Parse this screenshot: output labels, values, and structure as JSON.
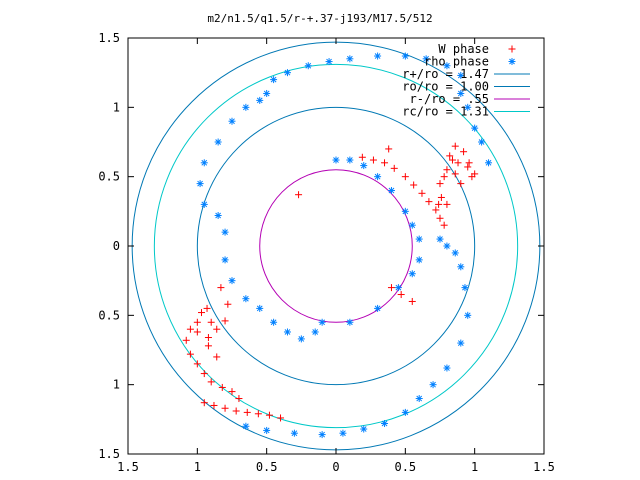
{
  "chart_data": {
    "type": "scatter",
    "title": "m2/n1.5/q1.5/r-+.37-j193/M17.5/512",
    "xlabel": "",
    "ylabel": "",
    "xlim": [
      -1.5,
      1.5
    ],
    "ylim": [
      -1.5,
      1.5
    ],
    "x_ticks": [
      -1.5,
      -1,
      -0.5,
      0,
      0.5,
      1,
      1.5
    ],
    "y_ticks": [
      1.5,
      1,
      0.5,
      0,
      -0.5,
      -1,
      -1.5
    ],
    "x_tick_labels": [
      "1.5",
      "1",
      "0.5",
      "0",
      "0.5",
      "1",
      "1.5"
    ],
    "y_tick_labels": [
      "1.5",
      "1",
      "0.5",
      "0",
      "0.5",
      "1",
      "1.5"
    ],
    "grid": false,
    "legend_position": "top-right",
    "series": [
      {
        "name": "W phase",
        "marker": "plus",
        "color": "#ff0000",
        "points": [
          [
            0.19,
            0.64
          ],
          [
            0.27,
            0.62
          ],
          [
            0.35,
            0.6
          ],
          [
            0.42,
            0.56
          ],
          [
            0.5,
            0.5
          ],
          [
            0.56,
            0.44
          ],
          [
            0.62,
            0.38
          ],
          [
            0.67,
            0.32
          ],
          [
            0.72,
            0.26
          ],
          [
            0.75,
            0.2
          ],
          [
            0.78,
            0.15
          ],
          [
            0.74,
            0.3
          ],
          [
            0.78,
            0.5
          ],
          [
            0.82,
            0.65
          ],
          [
            0.86,
            0.72
          ],
          [
            0.92,
            0.68
          ],
          [
            0.96,
            0.6
          ],
          [
            0.98,
            0.5
          ],
          [
            0.9,
            0.45
          ],
          [
            0.86,
            0.52
          ],
          [
            0.84,
            0.62
          ],
          [
            0.8,
            0.55
          ],
          [
            0.75,
            0.45
          ],
          [
            0.76,
            0.35
          ],
          [
            0.8,
            0.3
          ],
          [
            0.95,
            0.57
          ],
          [
            1.0,
            0.52
          ],
          [
            0.88,
            0.6
          ],
          [
            -0.27,
            0.37
          ],
          [
            0.38,
            0.7
          ],
          [
            0.4,
            -0.3
          ],
          [
            0.47,
            -0.35
          ],
          [
            0.55,
            -0.4
          ],
          [
            -0.83,
            -0.3
          ],
          [
            -0.78,
            -0.42
          ],
          [
            -0.8,
            -0.54
          ],
          [
            -0.86,
            -0.6
          ],
          [
            -0.9,
            -0.55
          ],
          [
            -0.93,
            -0.45
          ],
          [
            -0.97,
            -0.48
          ],
          [
            -1.0,
            -0.55
          ],
          [
            -1.05,
            -0.6
          ],
          [
            -1.08,
            -0.68
          ],
          [
            -1.05,
            -0.78
          ],
          [
            -1.0,
            -0.85
          ],
          [
            -0.95,
            -0.92
          ],
          [
            -0.9,
            -0.98
          ],
          [
            -0.82,
            -1.02
          ],
          [
            -0.75,
            -1.05
          ],
          [
            -0.7,
            -1.1
          ],
          [
            -0.95,
            -1.13
          ],
          [
            -0.88,
            -1.15
          ],
          [
            -0.8,
            -1.17
          ],
          [
            -0.72,
            -1.19
          ],
          [
            -0.64,
            -1.2
          ],
          [
            -0.56,
            -1.21
          ],
          [
            -0.48,
            -1.22
          ],
          [
            -0.4,
            -1.24
          ],
          [
            -1.0,
            -0.62
          ],
          [
            -0.92,
            -0.72
          ],
          [
            -0.86,
            -0.8
          ],
          [
            -0.92,
            -0.66
          ]
        ]
      },
      {
        "name": "rho phase",
        "marker": "star",
        "color": "#0080ff",
        "points": [
          [
            0.9,
            1.23
          ],
          [
            0.8,
            1.3
          ],
          [
            0.65,
            1.35
          ],
          [
            0.5,
            1.37
          ],
          [
            0.3,
            1.37
          ],
          [
            0.1,
            1.35
          ],
          [
            -0.05,
            1.33
          ],
          [
            -0.2,
            1.3
          ],
          [
            -0.35,
            1.25
          ],
          [
            -0.45,
            1.2
          ],
          [
            -0.5,
            1.1
          ],
          [
            -0.55,
            1.05
          ],
          [
            -0.65,
            1.0
          ],
          [
            -0.75,
            0.9
          ],
          [
            -0.85,
            0.75
          ],
          [
            -0.95,
            0.6
          ],
          [
            -0.98,
            0.45
          ],
          [
            -0.95,
            0.3
          ],
          [
            -0.85,
            0.22
          ],
          [
            -0.8,
            0.1
          ],
          [
            -0.8,
            -0.1
          ],
          [
            -0.75,
            -0.25
          ],
          [
            -0.65,
            -0.38
          ],
          [
            -0.55,
            -0.45
          ],
          [
            -0.45,
            -0.55
          ],
          [
            -0.35,
            -0.62
          ],
          [
            -0.25,
            -0.67
          ],
          [
            -0.15,
            -0.62
          ],
          [
            -0.1,
            -0.55
          ],
          [
            0.1,
            -0.55
          ],
          [
            0.3,
            -0.45
          ],
          [
            0.45,
            -0.3
          ],
          [
            0.55,
            -0.2
          ],
          [
            0.6,
            -0.1
          ],
          [
            0.6,
            0.05
          ],
          [
            0.55,
            0.15
          ],
          [
            0.5,
            0.25
          ],
          [
            0.4,
            0.4
          ],
          [
            0.3,
            0.5
          ],
          [
            0.2,
            0.58
          ],
          [
            0.1,
            0.62
          ],
          [
            0.0,
            0.62
          ],
          [
            0.86,
            -0.05
          ],
          [
            0.9,
            -0.15
          ],
          [
            0.93,
            -0.3
          ],
          [
            0.95,
            -0.5
          ],
          [
            0.9,
            -0.7
          ],
          [
            0.8,
            -0.88
          ],
          [
            0.7,
            -1.0
          ],
          [
            0.6,
            -1.1
          ],
          [
            0.5,
            -1.2
          ],
          [
            0.35,
            -1.28
          ],
          [
            0.2,
            -1.32
          ],
          [
            0.05,
            -1.35
          ],
          [
            -0.1,
            -1.36
          ],
          [
            -0.3,
            -1.35
          ],
          [
            -0.5,
            -1.33
          ],
          [
            -0.65,
            -1.3
          ],
          [
            0.75,
            0.05
          ],
          [
            0.8,
            0.0
          ],
          [
            0.9,
            1.1
          ],
          [
            0.95,
            1.0
          ],
          [
            1.0,
            0.85
          ],
          [
            1.05,
            0.75
          ],
          [
            1.1,
            0.6
          ]
        ]
      }
    ],
    "circles": [
      {
        "name": "r+/ro = 1.47",
        "r": 1.47,
        "color": "#0078b4"
      },
      {
        "name": "ro/ro = 1.00",
        "r": 1.0,
        "color": "#0078b4"
      },
      {
        "name": "r-/ro =  .55",
        "r": 0.55,
        "color": "#b400b4"
      },
      {
        "name": "rc/ro = 1.31",
        "r": 1.31,
        "color": "#00c8c8"
      }
    ]
  }
}
